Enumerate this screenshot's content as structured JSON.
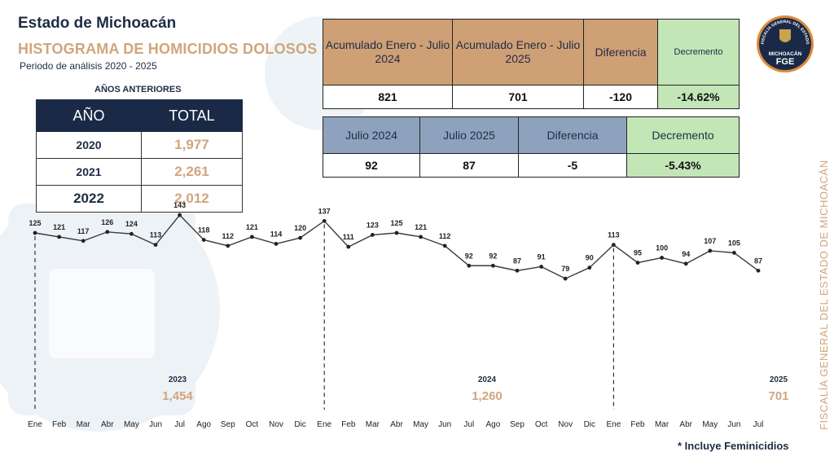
{
  "header": {
    "title": "Estado de Michoacán",
    "subtitle": "HISTOGRAMA DE HOMICIDIOS DOLOSOS",
    "period": "Periodo de análisis 2020 - 2025"
  },
  "previous_years": {
    "caption": "AÑOS ANTERIORES",
    "col_year": "AÑO",
    "col_total": "TOTAL",
    "rows": [
      {
        "year": "2020",
        "total": "1,977"
      },
      {
        "year": "2021",
        "total": "2,261"
      },
      {
        "year": "2022",
        "total": "2,012"
      }
    ]
  },
  "accumulated": {
    "headers": [
      "Acumulado Enero - Julio 2024",
      "Acumulado Enero - Julio 2025",
      "Diferencia",
      "Decremento"
    ],
    "values": [
      "821",
      "701",
      "-120",
      "-14.62%"
    ]
  },
  "july": {
    "headers": [
      "Julio 2024",
      "Julio 2025",
      "Diferencia",
      "Decremento"
    ],
    "values": [
      "92",
      "87",
      "-5",
      "-5.43%"
    ]
  },
  "logo": {
    "ring_text": "FISCALÍA GENERAL DEL ESTADO",
    "state": "MICHOACÁN",
    "abbr": "FGE"
  },
  "side_text": "FISCALÍA GENERAL DEL ESTADO DE MICHOACÁN",
  "footnote": "* Incluye Feminicidios",
  "colors": {
    "navy": "#1a2a46",
    "tan": "#d1a57d",
    "green": "#c3e6b7",
    "steel_blue": "#8fa2bd",
    "line": "#3a3a3a"
  },
  "chart_data": {
    "type": "line",
    "title": "HISTOGRAMA DE HOMICIDIOS DOLOSOS",
    "x": [
      "Ene",
      "Feb",
      "Mar",
      "Abr",
      "May",
      "Jun",
      "Jul",
      "Ago",
      "Sep",
      "Oct",
      "Nov",
      "Dic",
      "Ene",
      "Feb",
      "Mar",
      "Abr",
      "May",
      "Jun",
      "Jul",
      "Ago",
      "Sep",
      "Oct",
      "Nov",
      "Dic",
      "Ene",
      "Feb",
      "Mar",
      "Abr",
      "May",
      "Jun",
      "Jul"
    ],
    "series": [
      {
        "values": [
          125,
          121,
          117,
          126,
          124,
          113,
          143,
          118,
          112,
          121,
          114,
          120,
          137,
          111,
          123,
          125,
          121,
          112,
          92,
          92,
          87,
          91,
          79,
          90,
          113,
          95,
          100,
          94,
          107,
          105,
          87
        ]
      }
    ],
    "year_segments": [
      {
        "year": "2023",
        "total": "1,454"
      },
      {
        "year": "2024",
        "total": "1,260"
      },
      {
        "year": "2025",
        "total": "701"
      }
    ],
    "grid": false,
    "legend": "none"
  }
}
